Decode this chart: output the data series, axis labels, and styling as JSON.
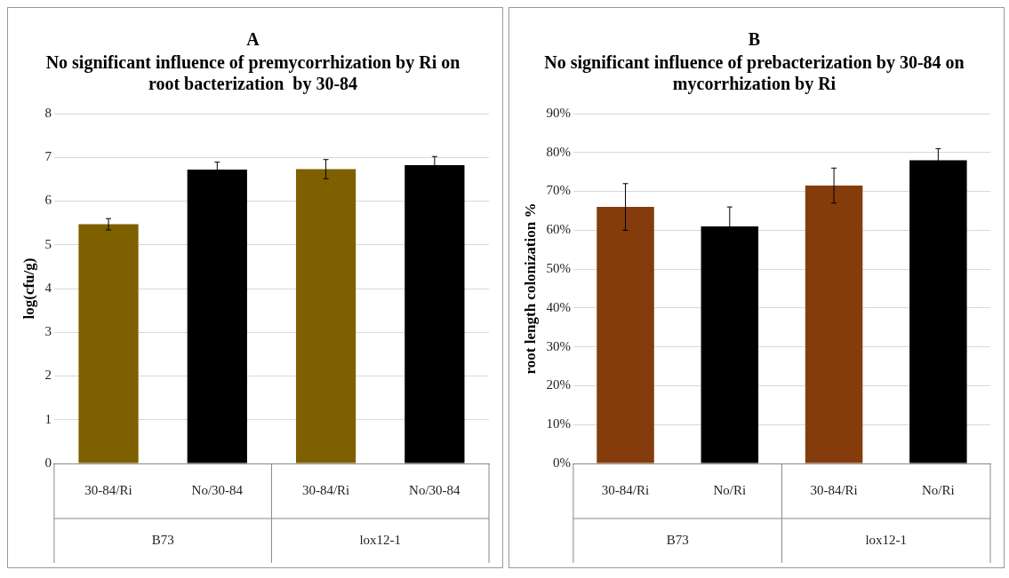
{
  "chart_data": [
    {
      "type": "bar",
      "title": "A",
      "subtitle": "No significant influence of premycorrhization by Ri on root bacterization  by 30-84",
      "ylabel": "log(cfu/g)",
      "categories": [
        "30-84/Ri",
        "No/30-84",
        "30-84/Ri",
        "No/30-84"
      ],
      "values": [
        5.47,
        6.72,
        6.73,
        6.82
      ],
      "errors": [
        0.13,
        0.17,
        0.22,
        0.2
      ],
      "colors": [
        "#7f6000",
        "#000000",
        "#7f6000",
        "#000000"
      ],
      "ylim": [
        0,
        8
      ],
      "yticks": [
        0,
        1,
        2,
        3,
        4,
        5,
        6,
        7,
        8
      ],
      "grid": "y",
      "legend": false,
      "annotations": [
        "B73",
        "lox12-1"
      ]
    },
    {
      "type": "bar",
      "title": "B",
      "subtitle": "No significant influence of prebacterization by 30-84 on mycorrhization by Ri",
      "ylabel": "root length colonization %",
      "categories": [
        "30-84/Ri",
        "No/Ri",
        "30-84/Ri",
        "No/Ri"
      ],
      "values": [
        66,
        61,
        71.5,
        78
      ],
      "errors": [
        6,
        5,
        4.5,
        3
      ],
      "colors": [
        "#843c0c",
        "#000000",
        "#843c0c",
        "#000000"
      ],
      "ylim": [
        0,
        90
      ],
      "yticks": [
        {
          "value": 0,
          "label": "0%"
        },
        {
          "value": 10,
          "label": "10%"
        },
        {
          "value": 20,
          "label": "20%"
        },
        {
          "value": 30,
          "label": "30%"
        },
        {
          "value": 40,
          "label": "40%"
        },
        {
          "value": 50,
          "label": "50%"
        },
        {
          "value": 60,
          "label": "60%"
        },
        {
          "value": 70,
          "label": "70%"
        },
        {
          "value": 80,
          "label": "80%"
        },
        {
          "value": 90,
          "label": "90%"
        }
      ],
      "grid": "y",
      "legend": false,
      "annotations": [
        "B73",
        "lox12-1"
      ]
    }
  ]
}
